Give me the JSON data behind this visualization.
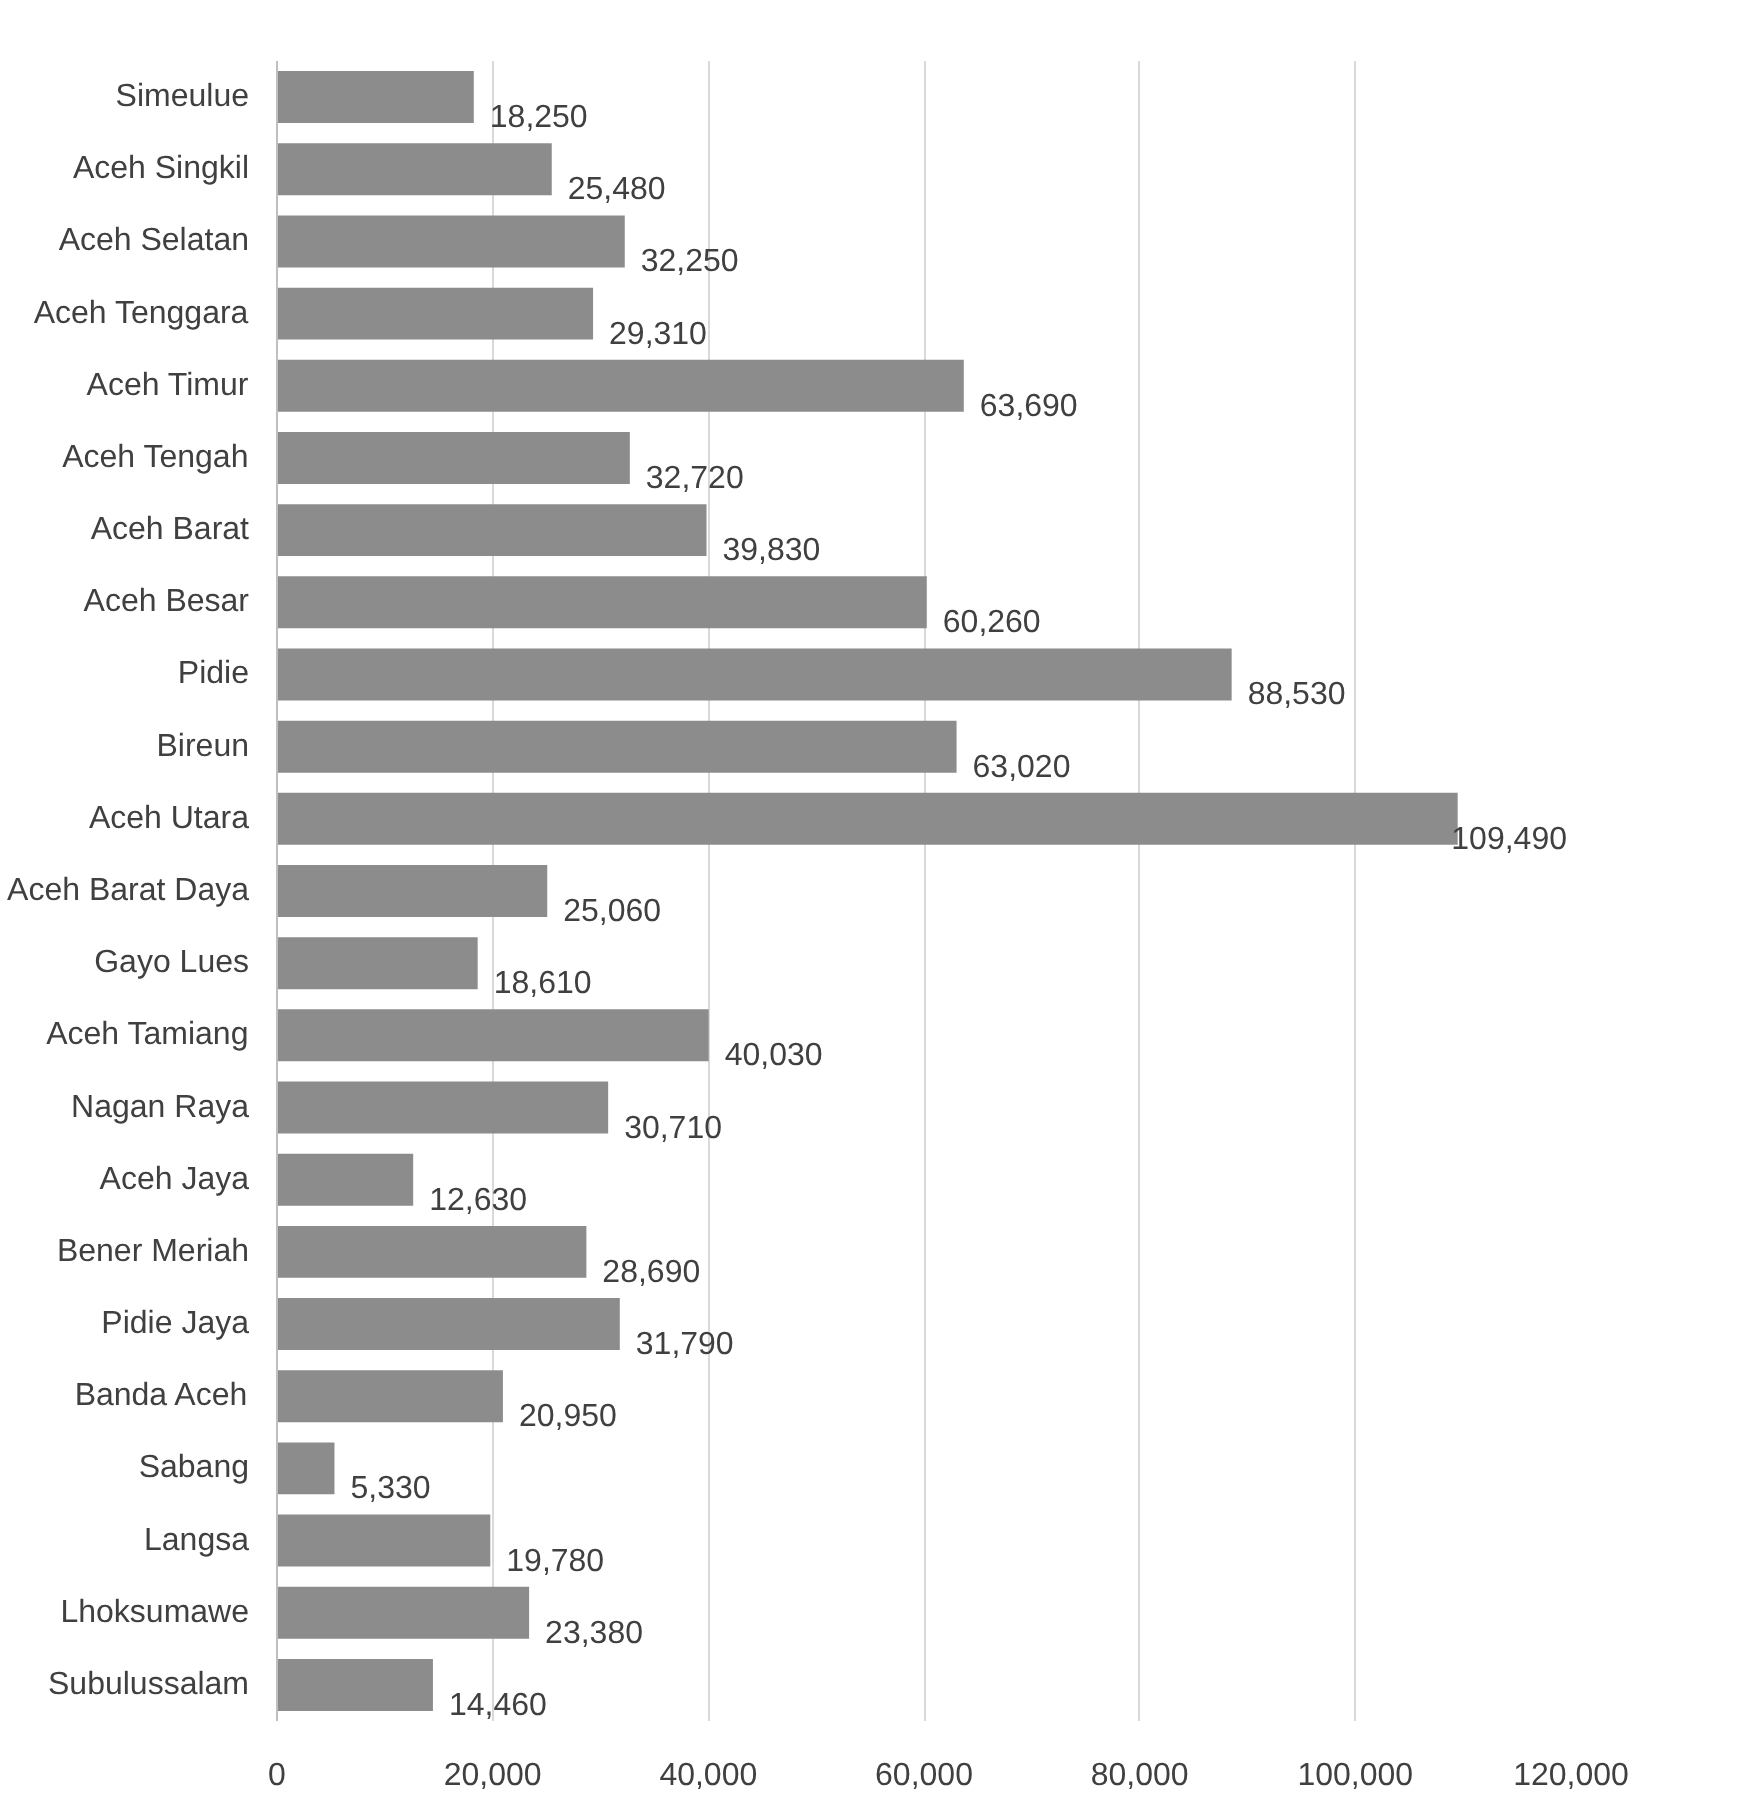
{
  "chart_data": {
    "type": "bar",
    "orientation": "horizontal",
    "categories": [
      "Simeulue",
      "Aceh Singkil",
      "Aceh Selatan",
      "Aceh Tenggara",
      "Aceh Timur",
      "Aceh Tengah",
      "Aceh Barat",
      "Aceh Besar",
      "Pidie",
      "Bireun",
      "Aceh Utara",
      "Aceh Barat Daya",
      "Gayo Lues",
      "Aceh Tamiang",
      "Nagan Raya",
      "Aceh Jaya",
      "Bener Meriah",
      "Pidie Jaya",
      "Banda Aceh",
      "Sabang",
      "Langsa",
      "Lhoksumawe",
      "Subulussalam"
    ],
    "values": [
      18250,
      25480,
      32250,
      29310,
      63690,
      32720,
      39830,
      60260,
      88530,
      63020,
      109490,
      25060,
      18610,
      40030,
      30710,
      12630,
      28690,
      31790,
      20950,
      5330,
      19780,
      23380,
      14460
    ],
    "value_labels": [
      "18,250",
      "25,480",
      "32,250",
      "29,310",
      "63,690",
      "32,720",
      "39,830",
      "60,260",
      "88,530",
      "63,020",
      "109,490",
      "25,060",
      "18,610",
      "40,030",
      "30,710",
      "12,630",
      "28,690",
      "31,790",
      "20,950",
      "5,330",
      "19,780",
      "23,380",
      "14,460"
    ],
    "color": "#8c8c8c",
    "xlim": [
      0,
      120000
    ],
    "xticks": [
      {
        "value": 0,
        "label": "0"
      },
      {
        "value": 20000,
        "label": "20,000"
      },
      {
        "value": 40000,
        "label": "40,000"
      },
      {
        "value": 60000,
        "label": "60,000"
      },
      {
        "value": 80000,
        "label": "80,000"
      },
      {
        "value": 100000,
        "label": "100,000"
      },
      {
        "value": 120000,
        "label": "120,000"
      }
    ],
    "grid": "x"
  }
}
